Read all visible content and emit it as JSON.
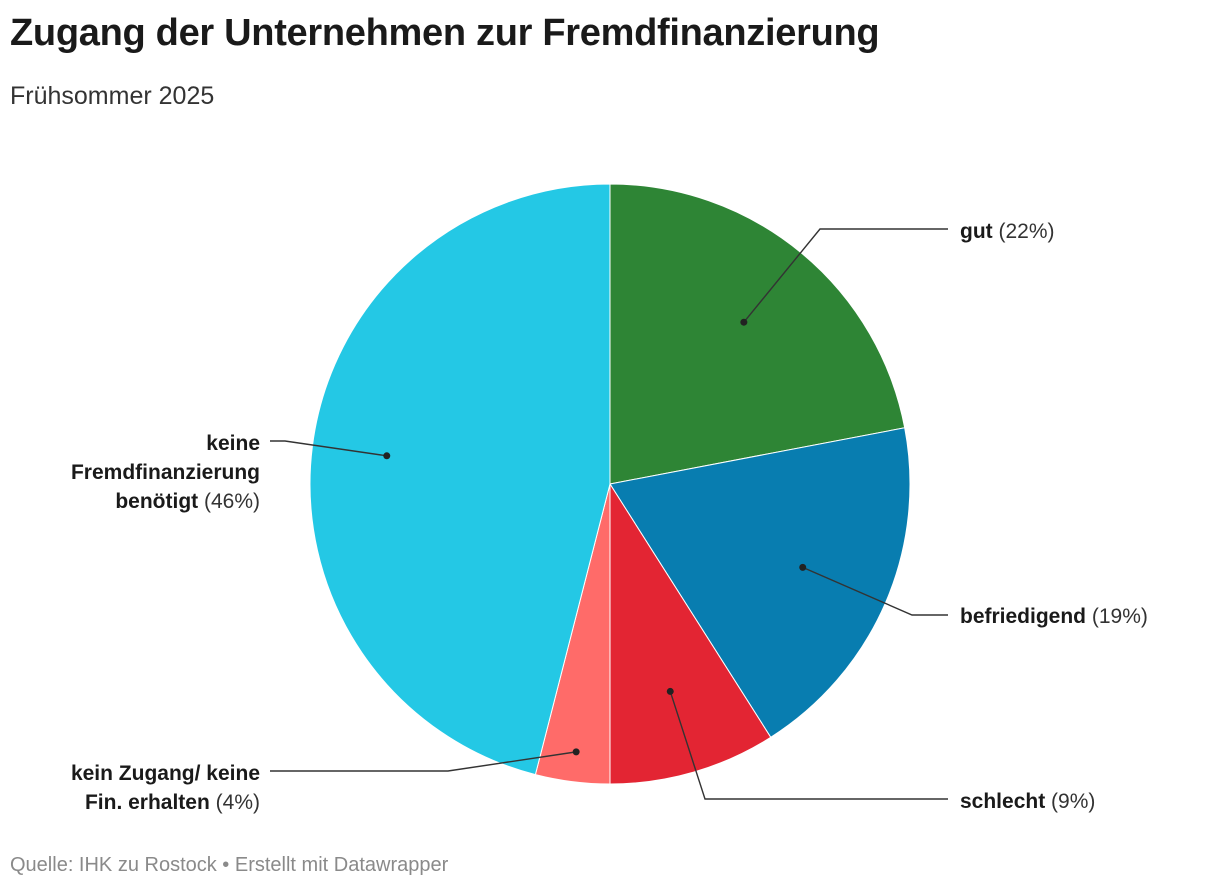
{
  "title": "Zugang der Unternehmen zur Fremdfinanzierung",
  "subtitle": "Frühsommer 2025",
  "footer": "Quelle: IHK zu Rostock • Erstellt mit Datawrapper",
  "chart_data": {
    "type": "pie",
    "title": "Zugang der Unternehmen zur Fremdfinanzierung",
    "subtitle": "Frühsommer 2025",
    "start_angle_deg": 0,
    "direction": "clockwise",
    "slices": [
      {
        "name": "gut",
        "value": 22,
        "label_lines": [
          "gut"
        ],
        "pct_text": "(22%)",
        "color": "#2e8535"
      },
      {
        "name": "befriedigend",
        "value": 19,
        "label_lines": [
          "befriedigend"
        ],
        "pct_text": "(19%)",
        "color": "#087db0"
      },
      {
        "name": "schlecht",
        "value": 9,
        "label_lines": [
          "schlecht"
        ],
        "pct_text": "(9%)",
        "color": "#e32533"
      },
      {
        "name": "kein Zugang/ keine Fin. erhalten",
        "value": 4,
        "label_lines": [
          "kein Zugang/ keine",
          "Fin. erhalten"
        ],
        "pct_text": "(4%)",
        "color": "#ff6b69"
      },
      {
        "name": "keine Fremdfinanzierung benötigt",
        "value": 46,
        "label_lines": [
          "keine",
          "Fremdfinanzierung",
          "benötigt"
        ],
        "pct_text": "(46%)",
        "color": "#24c8e5"
      }
    ],
    "source": "IHK zu Rostock"
  }
}
